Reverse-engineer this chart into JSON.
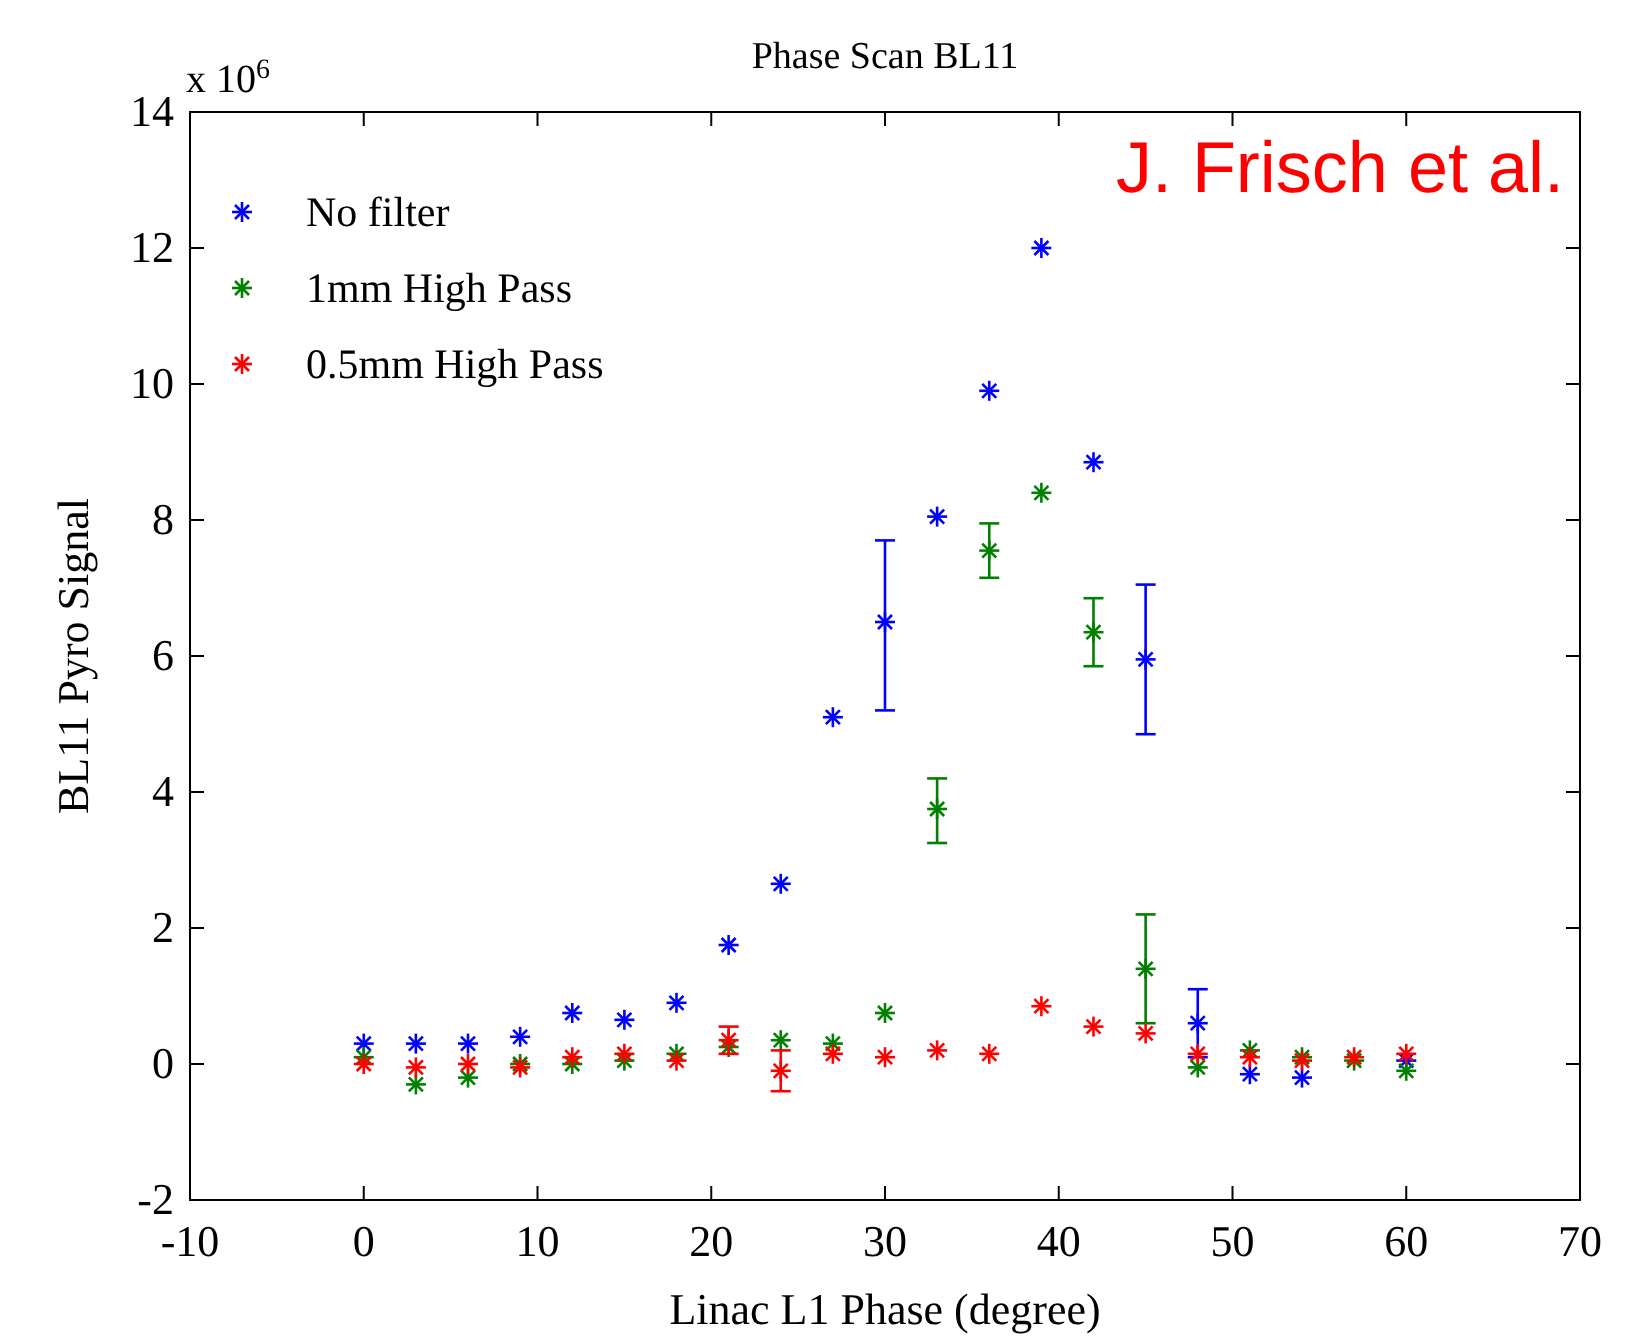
{
  "chart_data": {
    "type": "scatter",
    "title": "Phase Scan BL11",
    "xlabel": "Linac L1 Phase  (degree)",
    "ylabel": "BL11 Pyro Signal",
    "annotations": [
      "x 10$^{6}$",
      "J. Frisch et al."
    ],
    "x": [
      0,
      3,
      6,
      9,
      12,
      15,
      18,
      21,
      24,
      27,
      30,
      33,
      36,
      39,
      42,
      45,
      48,
      51,
      54,
      57,
      60
    ],
    "series": [
      {
        "name": "No filter",
        "color": "#0000ff",
        "values": [
          0.3,
          0.3,
          0.3,
          0.4,
          0.75,
          0.65,
          0.9,
          1.75,
          2.65,
          5.1,
          6.5,
          8.05,
          9.9,
          12.0,
          8.85,
          5.95,
          0.6,
          -0.15,
          -0.2,
          null,
          0.05
        ],
        "errors": [
          null,
          null,
          null,
          null,
          null,
          null,
          null,
          null,
          null,
          null,
          [
            5.2,
            7.7
          ],
          null,
          null,
          null,
          null,
          [
            4.85,
            7.05
          ],
          [
            0.1,
            1.1
          ],
          null,
          null,
          null,
          null
        ]
      },
      {
        "name": "1mm High Pass",
        "color": "#008000",
        "values": [
          0.1,
          -0.3,
          -0.2,
          0.0,
          0.0,
          0.05,
          0.15,
          0.25,
          0.35,
          0.3,
          0.75,
          3.75,
          7.55,
          8.4,
          6.35,
          1.4,
          -0.05,
          0.2,
          0.1,
          0.05,
          -0.1
        ],
        "errors": [
          null,
          null,
          null,
          null,
          null,
          null,
          null,
          null,
          null,
          null,
          null,
          [
            3.25,
            4.2
          ],
          [
            7.15,
            7.95
          ],
          null,
          [
            5.85,
            6.85
          ],
          [
            0.6,
            2.2
          ],
          null,
          null,
          null,
          null,
          null
        ]
      },
      {
        "name": "0.5mm High Pass",
        "color": "#ff0000",
        "values": [
          0.0,
          -0.05,
          0.0,
          -0.05,
          0.1,
          0.15,
          0.05,
          0.35,
          -0.1,
          0.15,
          0.1,
          0.2,
          0.15,
          0.85,
          0.55,
          0.45,
          0.15,
          0.1,
          0.05,
          0.1,
          0.15
        ],
        "errors": [
          null,
          null,
          null,
          null,
          null,
          null,
          null,
          0.2,
          0.3,
          null,
          null,
          null,
          null,
          null,
          null,
          null,
          null,
          null,
          null,
          null,
          null
        ]
      }
    ],
    "xlim": [
      -10,
      70
    ],
    "xticks": [
      -10,
      0,
      10,
      20,
      30,
      40,
      50,
      60,
      70
    ],
    "ylim": [
      -2,
      14
    ],
    "yticks": [
      -2,
      0,
      2,
      4,
      6,
      8,
      10,
      12,
      14
    ],
    "marker": "cross",
    "legend": "top left"
  }
}
